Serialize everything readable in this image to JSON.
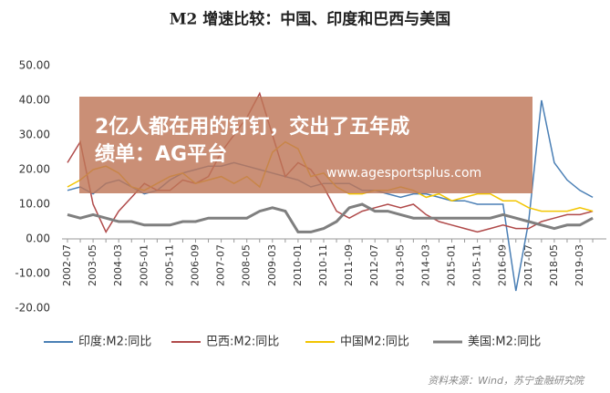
{
  "chart_data": {
    "type": "line",
    "title": "M2 增速比较：中国、印度和巴西与美国",
    "categories": [
      "2002-07",
      null,
      "2003-05",
      null,
      "2004-03",
      null,
      "2005-01",
      null,
      "2005-11",
      null,
      "2006-09",
      null,
      "2007-07",
      null,
      "2008-05",
      null,
      "2009-03",
      null,
      "2010-01",
      null,
      "2010-11",
      null,
      "2011-09",
      null,
      "2012-07",
      null,
      "2013-05",
      null,
      "2014-03",
      null,
      "2015-01",
      null,
      "2015-11",
      null,
      "2016-09",
      null,
      "2017-07",
      null,
      "2018-05",
      null,
      "2019-03",
      null
    ],
    "series": [
      {
        "name": "印度:M2:同比",
        "color": "#4a7fb5",
        "values": [
          14,
          15,
          13,
          16,
          17,
          15,
          13,
          14,
          17,
          19,
          20,
          21,
          21,
          22,
          21,
          20,
          19,
          18,
          17,
          15,
          16,
          16,
          16,
          14,
          14,
          13,
          12,
          13,
          13,
          12,
          11,
          11,
          10,
          10,
          10,
          -15,
          5,
          40,
          22,
          17,
          14,
          12
        ]
      },
      {
        "name": "巴西:M2:同比",
        "color": "#b04a4a",
        "values": [
          22,
          28,
          10,
          2,
          8,
          12,
          16,
          14,
          14,
          17,
          16,
          18,
          25,
          30,
          35,
          42,
          30,
          18,
          22,
          20,
          15,
          8,
          6,
          8,
          9,
          10,
          9,
          10,
          7,
          5,
          4,
          3,
          2,
          3,
          4,
          3,
          3,
          5,
          6,
          7,
          7,
          8
        ]
      },
      {
        "name": "中国M2:同比",
        "color": "#f2c500",
        "values": [
          15,
          17,
          20,
          21,
          19,
          15,
          14,
          16,
          18,
          19,
          16,
          17,
          18,
          16,
          18,
          15,
          25,
          28,
          26,
          18,
          19,
          15,
          13,
          13,
          14,
          14,
          15,
          14,
          12,
          13,
          11,
          12,
          13,
          13,
          11,
          11,
          9,
          8,
          8,
          8,
          9,
          8
        ]
      },
      {
        "name": "美国:M2:同比",
        "color": "#7f7f7f",
        "values": [
          7,
          6,
          7,
          6,
          5,
          5,
          4,
          4,
          4,
          5,
          5,
          6,
          6,
          6,
          6,
          8,
          9,
          8,
          2,
          2,
          3,
          5,
          9,
          10,
          8,
          8,
          7,
          6,
          6,
          6,
          6,
          6,
          6,
          6,
          7,
          6,
          5,
          4,
          3,
          4,
          4,
          6
        ]
      }
    ],
    "ylim": [
      -20,
      50
    ],
    "yticks": [
      {
        "value": -20,
        "label": "-20.00"
      },
      {
        "value": -10,
        "label": "-10.00"
      },
      {
        "value": 0,
        "label": "0.00"
      },
      {
        "value": 10,
        "label": "10.00"
      },
      {
        "value": 20,
        "label": "20.00"
      },
      {
        "value": 30,
        "label": "30.00"
      },
      {
        "value": 40,
        "label": "40.00"
      },
      {
        "value": 50,
        "label": "50.00"
      }
    ],
    "grid": false,
    "legend": "bottom",
    "source": "资料来源：Wind，苏宁金融研究院"
  },
  "overlay": {
    "headline_lines": [
      "2亿人都在用的钉钉，交出了五年成",
      "绩单：AG平台"
    ],
    "url": "www.agesportsplus.com"
  }
}
